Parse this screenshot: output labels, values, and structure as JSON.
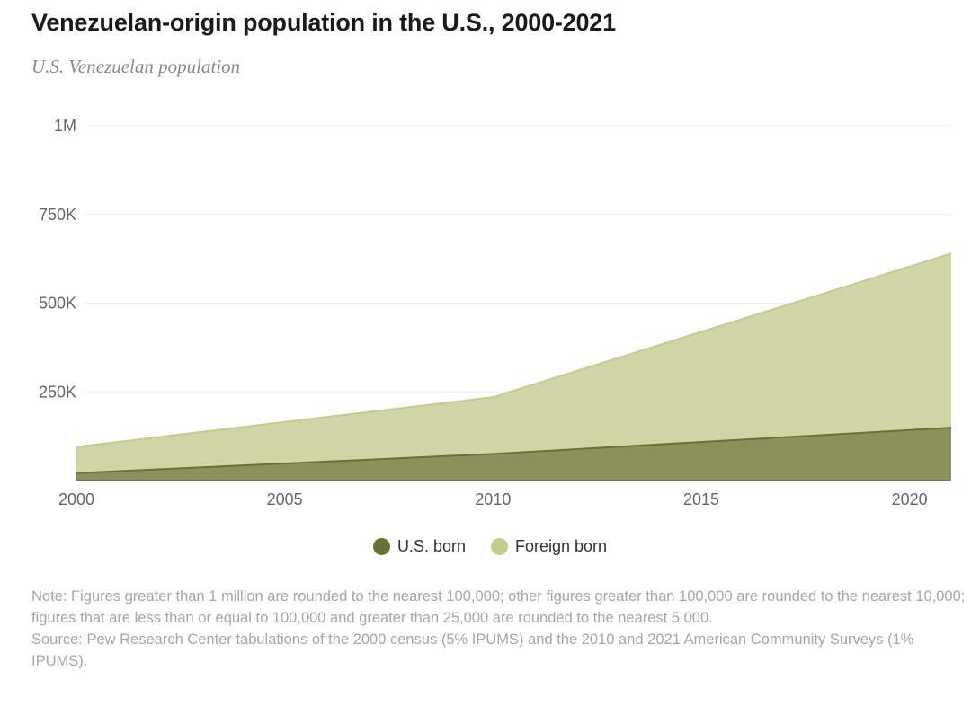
{
  "header": {
    "title": "Venezuelan-origin population in the U.S., 2000-2021",
    "subtitle": "U.S. Venezuelan population"
  },
  "chart_data": {
    "type": "area",
    "stacked": true,
    "x": [
      2000,
      2010,
      2021
    ],
    "series": [
      {
        "name": "U.S. born",
        "values": [
          21000,
          75000,
          149000
        ],
        "color": "#6b7134",
        "fill": "#8b915d"
      },
      {
        "name": "Foreign born",
        "values": [
          74000,
          160000,
          491000
        ],
        "color": "#c4cb90",
        "fill": "#cfd5a4"
      }
    ],
    "xlim": [
      2000,
      2021
    ],
    "ylim": [
      0,
      1000000
    ],
    "x_ticks": [
      {
        "value": 2000,
        "label": "2000"
      },
      {
        "value": 2005,
        "label": "2005"
      },
      {
        "value": 2010,
        "label": "2010"
      },
      {
        "value": 2015,
        "label": "2015"
      },
      {
        "value": 2020,
        "label": "2020"
      }
    ],
    "y_ticks": [
      {
        "value": 250000,
        "label": "250K"
      },
      {
        "value": 500000,
        "label": "500K"
      },
      {
        "value": 750000,
        "label": "750K"
      },
      {
        "value": 1000000,
        "label": "1M"
      }
    ],
    "grid": true,
    "legend_position": "bottom-center"
  },
  "footer": {
    "note": "Note: Figures greater than 1 million are rounded to the nearest 100,000; other figures greater than 100,000 are rounded to the nearest 10,000; figures that are less than or equal to 100,000 and greater than 25,000 are rounded to the nearest 5,000.",
    "source": "Source: Pew Research Center tabulations of the 2000 census (5% IPUMS) and the 2010 and 2021 American Community Surveys (1% IPUMS)."
  }
}
